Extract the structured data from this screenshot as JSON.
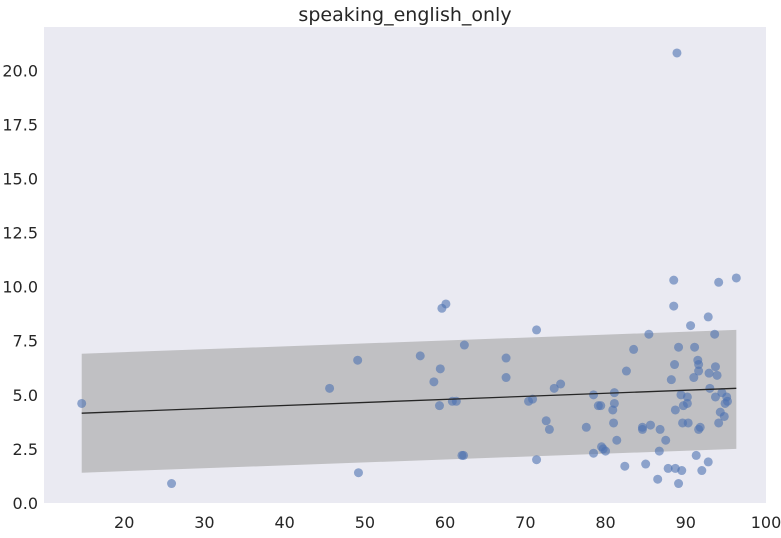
{
  "chart_data": {
    "type": "scatter",
    "title": "speaking_english_only",
    "xlabel": "",
    "ylabel": "",
    "xlim": [
      10,
      100
    ],
    "ylim": [
      0,
      22
    ],
    "xticks": [
      20,
      30,
      40,
      50,
      60,
      70,
      80,
      90,
      100
    ],
    "yticks": [
      0.0,
      2.5,
      5.0,
      7.5,
      10.0,
      12.5,
      15.0,
      17.5,
      20.0
    ],
    "grid": false,
    "colors": {
      "background": "#eaeaf2",
      "points": "#4c72b0",
      "band": "#a9a9a9",
      "line": "#262626"
    },
    "regression_line": {
      "x": [
        14.7,
        96.3
      ],
      "y": [
        4.15,
        5.3
      ]
    },
    "confidence_band": {
      "x": [
        14.7,
        96.3
      ],
      "upper": [
        6.9,
        8.0
      ],
      "lower": [
        1.4,
        2.5
      ]
    },
    "points": [
      [
        14.7,
        4.6
      ],
      [
        25.9,
        0.9
      ],
      [
        45.6,
        5.3
      ],
      [
        49.1,
        6.6
      ],
      [
        49.2,
        1.4
      ],
      [
        56.9,
        6.8
      ],
      [
        58.6,
        5.6
      ],
      [
        59.3,
        4.5
      ],
      [
        59.4,
        6.2
      ],
      [
        59.6,
        9.0
      ],
      [
        60.1,
        9.2
      ],
      [
        60.9,
        4.7
      ],
      [
        61.4,
        4.7
      ],
      [
        62.1,
        2.2
      ],
      [
        62.3,
        2.2
      ],
      [
        62.4,
        7.3
      ],
      [
        67.6,
        6.7
      ],
      [
        67.6,
        5.8
      ],
      [
        70.4,
        4.7
      ],
      [
        70.9,
        4.8
      ],
      [
        71.4,
        8.0
      ],
      [
        71.4,
        2.0
      ],
      [
        72.6,
        3.8
      ],
      [
        73.0,
        3.4
      ],
      [
        73.6,
        5.3
      ],
      [
        74.4,
        5.5
      ],
      [
        77.6,
        3.5
      ],
      [
        78.5,
        2.3
      ],
      [
        78.5,
        5.0
      ],
      [
        79.1,
        4.5
      ],
      [
        79.4,
        4.5
      ],
      [
        79.5,
        2.6
      ],
      [
        79.7,
        2.5
      ],
      [
        80.0,
        2.4
      ],
      [
        80.9,
        4.3
      ],
      [
        81.0,
        3.7
      ],
      [
        81.1,
        5.1
      ],
      [
        81.1,
        4.6
      ],
      [
        81.4,
        2.9
      ],
      [
        82.4,
        1.7
      ],
      [
        82.6,
        6.1
      ],
      [
        83.5,
        7.1
      ],
      [
        84.6,
        3.4
      ],
      [
        84.6,
        3.5
      ],
      [
        85.0,
        1.8
      ],
      [
        85.4,
        7.8
      ],
      [
        85.6,
        3.6
      ],
      [
        86.5,
        1.1
      ],
      [
        86.7,
        2.4
      ],
      [
        86.8,
        3.4
      ],
      [
        87.5,
        2.9
      ],
      [
        87.8,
        1.6
      ],
      [
        88.2,
        5.7
      ],
      [
        88.5,
        10.3
      ],
      [
        88.5,
        9.1
      ],
      [
        88.6,
        6.4
      ],
      [
        88.7,
        4.3
      ],
      [
        88.7,
        1.6
      ],
      [
        88.9,
        20.8
      ],
      [
        89.1,
        0.9
      ],
      [
        89.1,
        7.2
      ],
      [
        89.4,
        5.0
      ],
      [
        89.5,
        1.5
      ],
      [
        89.6,
        3.7
      ],
      [
        89.7,
        4.5
      ],
      [
        90.2,
        4.9
      ],
      [
        90.2,
        4.6
      ],
      [
        90.3,
        3.7
      ],
      [
        90.6,
        8.2
      ],
      [
        91.0,
        5.8
      ],
      [
        91.1,
        7.2
      ],
      [
        91.3,
        2.2
      ],
      [
        91.5,
        6.6
      ],
      [
        91.6,
        6.4
      ],
      [
        91.6,
        6.1
      ],
      [
        91.6,
        3.4
      ],
      [
        91.8,
        3.5
      ],
      [
        92.0,
        1.5
      ],
      [
        92.8,
        8.6
      ],
      [
        92.8,
        1.9
      ],
      [
        92.9,
        6.0
      ],
      [
        93.0,
        5.3
      ],
      [
        93.6,
        7.8
      ],
      [
        93.7,
        6.3
      ],
      [
        93.7,
        4.9
      ],
      [
        93.9,
        5.9
      ],
      [
        94.1,
        10.2
      ],
      [
        94.1,
        3.7
      ],
      [
        94.3,
        4.2
      ],
      [
        94.5,
        5.1
      ],
      [
        94.8,
        4.0
      ],
      [
        94.9,
        4.6
      ],
      [
        95.1,
        4.9
      ],
      [
        95.2,
        4.7
      ],
      [
        96.3,
        10.4
      ]
    ]
  }
}
